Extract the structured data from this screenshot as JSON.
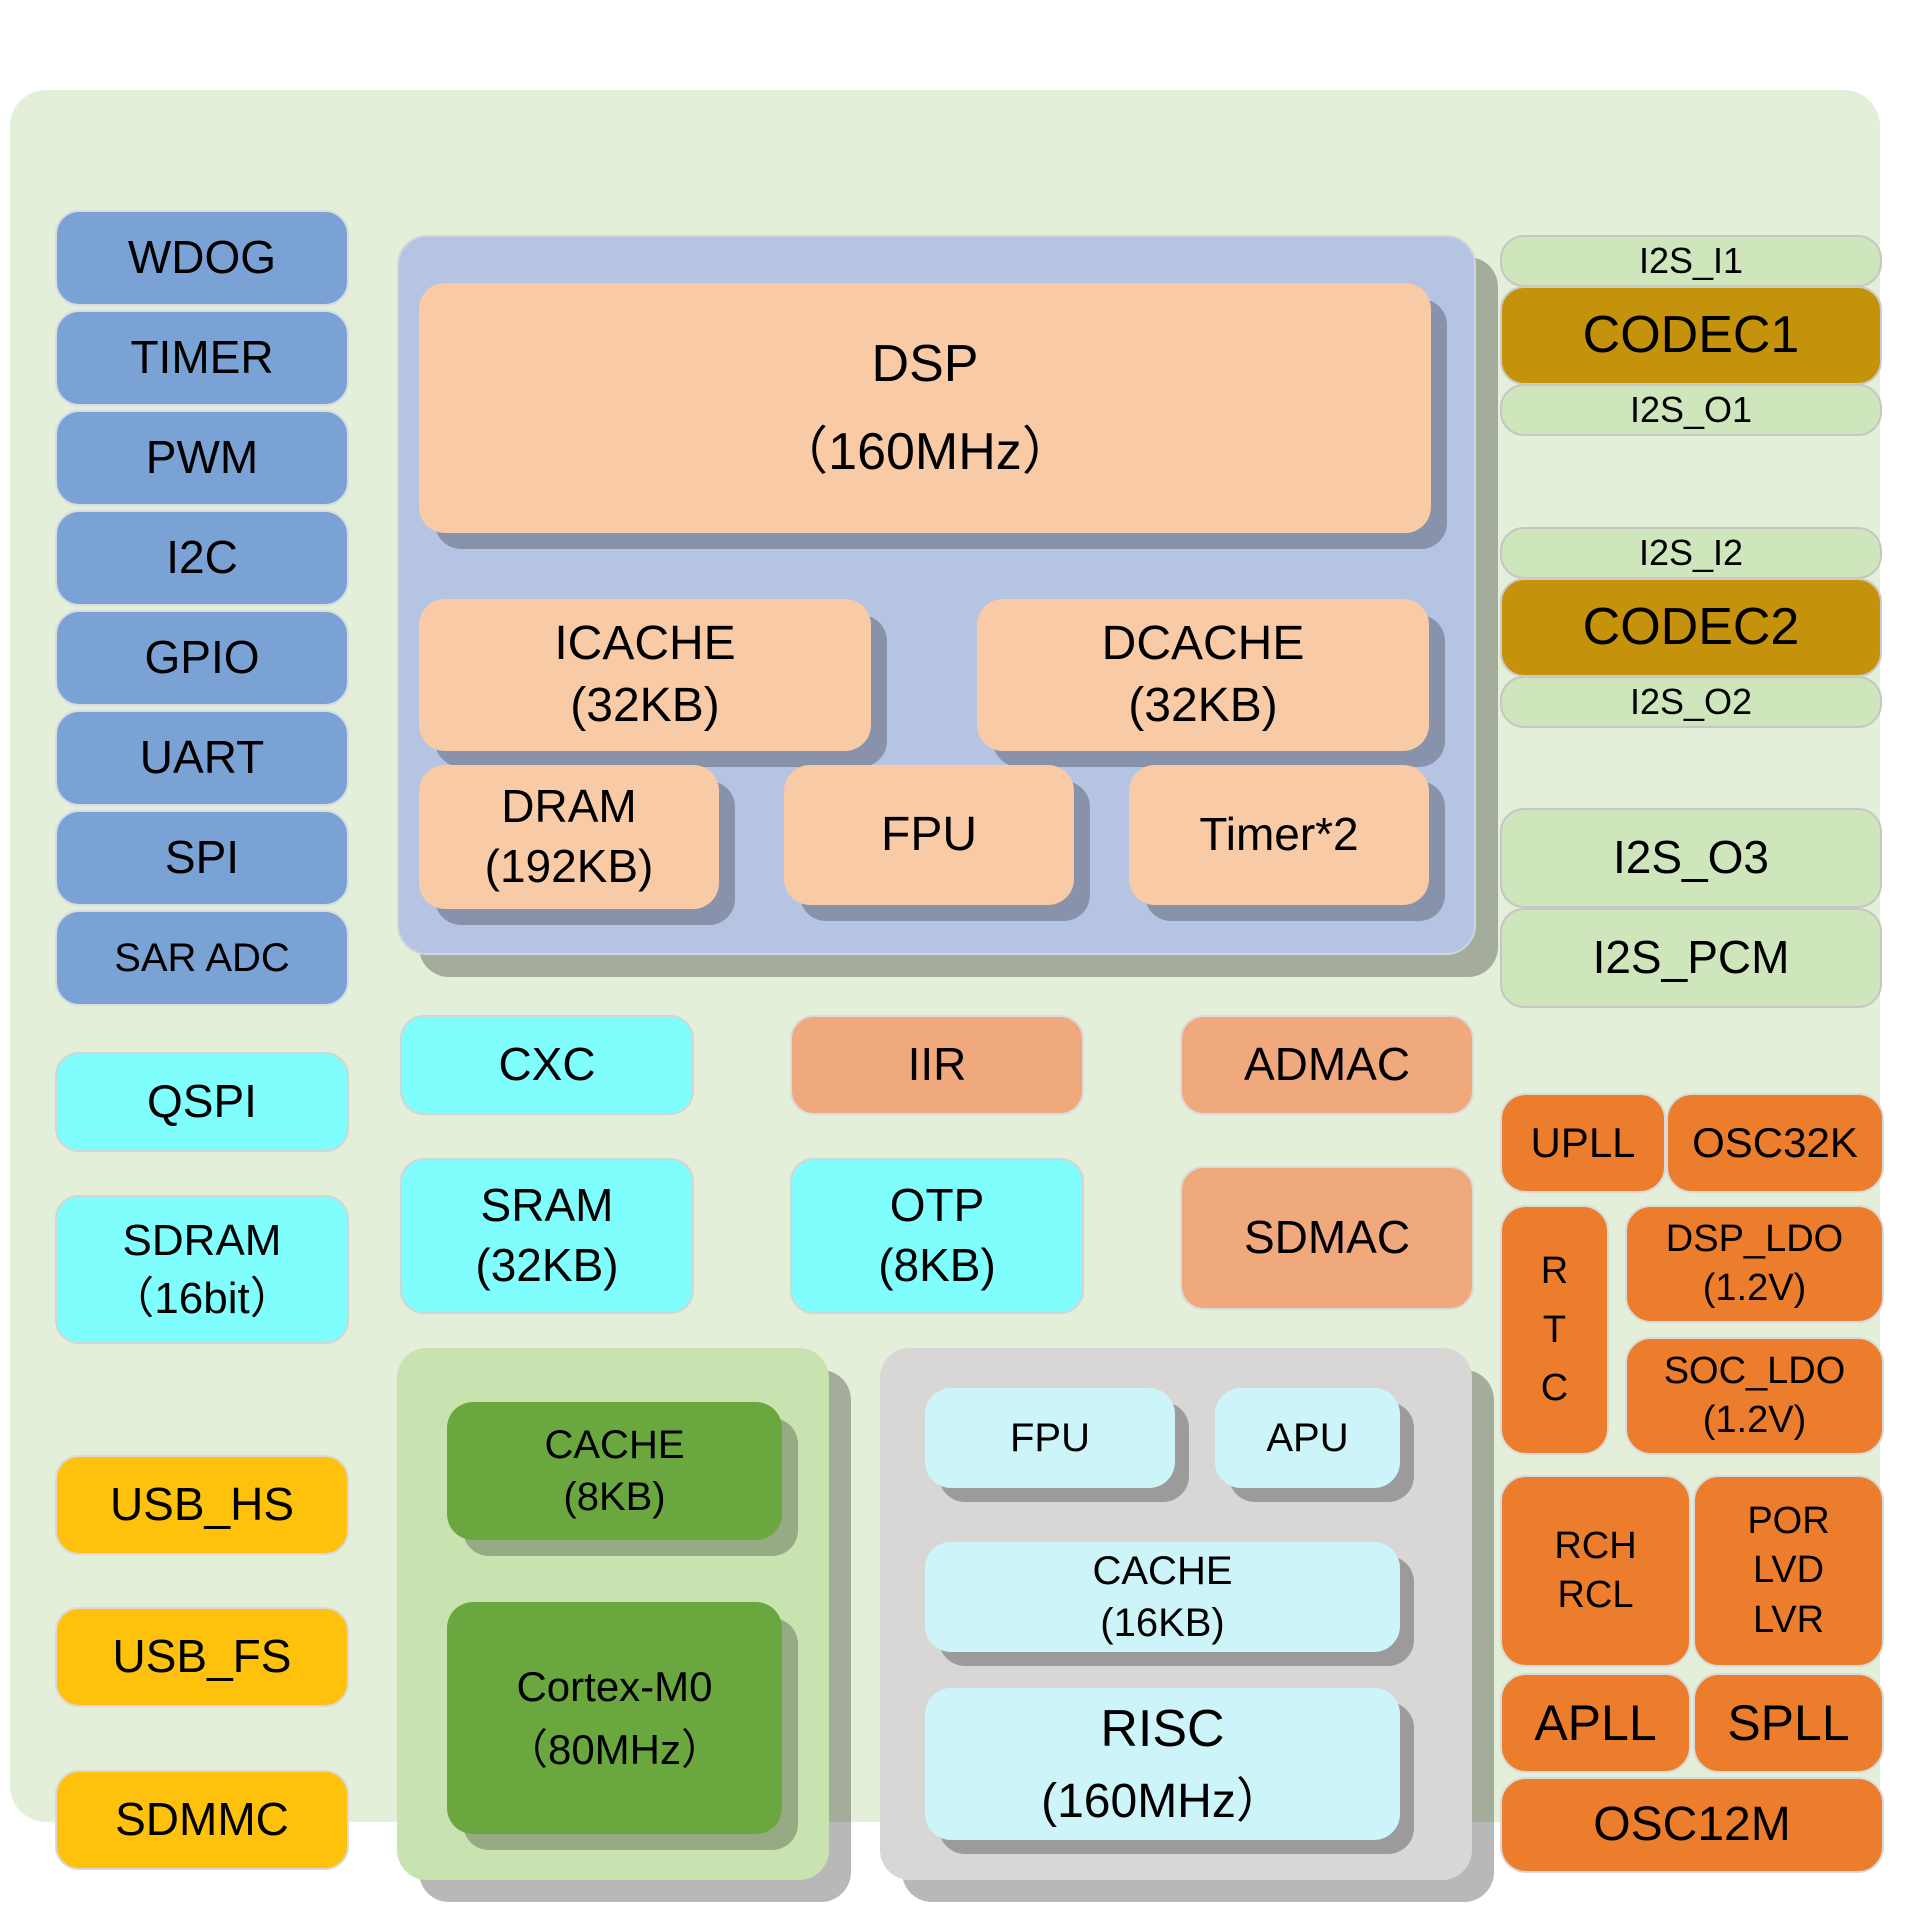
{
  "diagram": {
    "left": {
      "blue": [
        "WDOG",
        "TIMER",
        "PWM",
        "I2C",
        "GPIO",
        "UART",
        "SPI",
        "SAR ADC"
      ],
      "qspi": "QSPI",
      "sdram": [
        "SDRAM",
        "（16bit）"
      ],
      "usb_hs": "USB_HS",
      "usb_fs": "USB_FS",
      "sdmmc": "SDMMC"
    },
    "dsp": {
      "title": [
        "DSP",
        "（160MHz）"
      ],
      "icache": [
        "ICACHE",
        "(32KB)"
      ],
      "dcache": [
        "DCACHE",
        "(32KB)"
      ],
      "dram": [
        "DRAM",
        "(192KB)"
      ],
      "fpu": "FPU",
      "timer": "Timer*2"
    },
    "mid": {
      "cxc": "CXC",
      "iir": "IIR",
      "admac": "ADMAC",
      "sram": [
        "SRAM",
        "(32KB)"
      ],
      "otp": [
        "OTP",
        "(8KB)"
      ],
      "sdmac": "SDMAC"
    },
    "mcu": {
      "cache": [
        "CACHE",
        "(8KB)"
      ],
      "core": [
        "Cortex-M0",
        "（80MHz）"
      ]
    },
    "risc": {
      "fpu": "FPU",
      "apu": "APU",
      "cache": [
        "CACHE",
        "(16KB)"
      ],
      "core": [
        "RISC",
        "(160MHz）"
      ]
    },
    "audio": {
      "i2s_i1": "I2S_I1",
      "codec1": "CODEC1",
      "i2s_o1": "I2S_O1",
      "i2s_i2": "I2S_I2",
      "codec2": "CODEC2",
      "i2s_o2": "I2S_O2",
      "i2s_o3": "I2S_O3",
      "i2s_pcm": "I2S_PCM"
    },
    "power": {
      "upll": "UPLL",
      "osc32k": "OSC32K",
      "rtc": [
        "R",
        "T",
        "C"
      ],
      "dsp_ldo": [
        "DSP_LDO",
        "(1.2V)"
      ],
      "soc_ldo": [
        "SOC_LDO",
        "(1.2V)"
      ],
      "rch": [
        "RCH",
        "RCL"
      ],
      "por": [
        "POR",
        "LVD",
        "LVR"
      ],
      "apll": "APLL",
      "spll": "SPLL",
      "osc12m": "OSC12M"
    },
    "colors": {
      "panel": "#e4efd9",
      "peripheral_blue": "#7ba2d4",
      "memory_cyan": "#80fdfd",
      "usb_yellow": "#fec20c",
      "dsp_container_periwinkle": "#b6c4e4",
      "dsp_inner_peach": "#f8cba6",
      "dma_salmon": "#f0a87d",
      "i2s_light_green": "#cfe5bb",
      "codec_gold": "#c5920b",
      "mcu_container_green": "#c8e3b0",
      "mcu_inner_green": "#6ba73f",
      "risc_container_gray": "#d9d6d6",
      "risc_inner_cyan": "#cdf4f9",
      "power_orange": "#ec7d2d"
    }
  }
}
